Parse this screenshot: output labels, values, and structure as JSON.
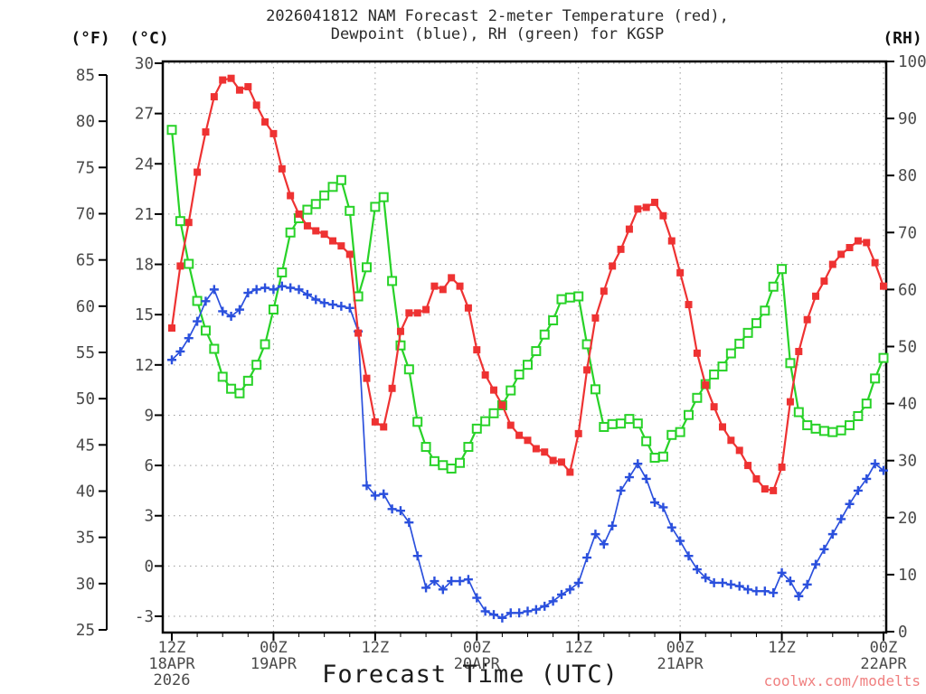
{
  "title": {
    "line1": "2026041812 NAM Forecast 2-meter Temperature (red),",
    "line2": "Dewpoint (blue), RH (green) for KGSP"
  },
  "watermark": {
    "text": "coolwx.com/modelts",
    "color": "#f08080"
  },
  "chart_data": {
    "type": "line",
    "title": "2026041812 NAM Forecast 2-meter Temperature (red), Dewpoint (blue), RH (green) for KGSP",
    "xlabel": "Forecast Time (UTC)",
    "x_hours_range": [
      0,
      84
    ],
    "x_hour_step": 1,
    "grid": "dotted, vertical every 12h, horizontal every 3 deg C",
    "x_ticks": [
      {
        "hour": 0,
        "label": "12Z",
        "date": "18APR",
        "year": "2026"
      },
      {
        "hour": 12,
        "label": "00Z",
        "date": "19APR",
        "year": ""
      },
      {
        "hour": 24,
        "label": "12Z",
        "date": "",
        "year": ""
      },
      {
        "hour": 36,
        "label": "00Z",
        "date": "20APR",
        "year": ""
      },
      {
        "hour": 48,
        "label": "12Z",
        "date": "",
        "year": ""
      },
      {
        "hour": 60,
        "label": "00Z",
        "date": "21APR",
        "year": ""
      },
      {
        "hour": 72,
        "label": "12Z",
        "date": "",
        "year": ""
      },
      {
        "hour": 84,
        "label": "00Z",
        "date": "22APR",
        "year": ""
      }
    ],
    "axes": {
      "fahrenheit": {
        "header": "(°F)",
        "ticks": [
          85,
          80,
          75,
          70,
          65,
          60,
          55,
          50,
          45,
          40,
          35,
          30,
          25
        ],
        "range": [
          85,
          25
        ]
      },
      "celsius": {
        "header": "(°C)",
        "ticks": [
          30,
          27,
          24,
          21,
          18,
          15,
          12,
          9,
          6,
          3,
          0,
          -3
        ],
        "range": [
          30,
          -3
        ]
      },
      "rh": {
        "header": "(RH)",
        "ticks": [
          100,
          90,
          80,
          70,
          60,
          50,
          40,
          30,
          20,
          10,
          0
        ],
        "range": [
          100,
          0
        ]
      }
    },
    "series": [
      {
        "name": "rh",
        "legend": "RH (green)",
        "axis": "rh",
        "color": "#28d228",
        "marker": "square-open",
        "values": [
          88,
          72,
          64.5,
          58,
          52.8,
          49.6,
          44.7,
          42.6,
          41.8,
          44,
          46.8,
          50.4,
          56.5,
          63,
          70,
          72.5,
          74,
          75,
          76.5,
          78,
          79.2,
          73.8,
          58.8,
          63.9,
          74.5,
          76.2,
          61.5,
          50.2,
          46,
          36.8,
          32.4,
          29.9,
          29.2,
          28.6,
          29.6,
          32.4,
          35.6,
          36.9,
          38.3,
          39.7,
          42.3,
          45.1,
          46.8,
          49.2,
          52.1,
          54.6,
          58.3,
          58.6,
          58.8,
          50.4,
          42.5,
          35.9,
          36.4,
          36.5,
          37.3,
          36.5,
          33.4,
          30.5,
          30.7,
          34.5,
          35,
          38,
          41,
          43.4,
          45.1,
          46.5,
          48.8,
          50.5,
          52.4,
          54.1,
          56.3,
          60.5,
          63.6,
          47.1,
          38.5,
          36.2,
          35.6,
          35.2,
          35,
          35.3,
          36.2,
          37.8,
          40,
          44.4,
          48
        ]
      },
      {
        "name": "dewpoint",
        "legend": "Dewpoint (blue)",
        "axis": "celsius",
        "color": "#2b50dd",
        "marker": "plus",
        "values": [
          12.3,
          12.8,
          13.6,
          14.6,
          15.8,
          16.5,
          15.2,
          14.9,
          15.3,
          16.3,
          16.5,
          16.6,
          16.5,
          16.7,
          16.6,
          16.5,
          16.2,
          15.9,
          15.7,
          15.6,
          15.5,
          15.4,
          14,
          4.8,
          4.2,
          4.3,
          3.4,
          3.3,
          2.6,
          0.6,
          -1.3,
          -0.9,
          -1.4,
          -0.9,
          -0.9,
          -0.8,
          -1.9,
          -2.7,
          -2.9,
          -3.1,
          -2.8,
          -2.8,
          -2.7,
          -2.6,
          -2.4,
          -2.1,
          -1.7,
          -1.4,
          -1,
          0.5,
          1.9,
          1.3,
          2.4,
          4.5,
          5.3,
          6.1,
          5.2,
          3.8,
          3.5,
          2.3,
          1.5,
          0.6,
          -0.2,
          -0.7,
          -1,
          -1,
          -1.1,
          -1.2,
          -1.4,
          -1.5,
          -1.5,
          -1.6,
          -0.4,
          -0.9,
          -1.8,
          -1.1,
          0.1,
          1,
          1.9,
          2.8,
          3.7,
          4.5,
          5.2,
          6.1,
          5.7
        ]
      },
      {
        "name": "temperature",
        "legend": "2-meter Temperature (red)",
        "axis": "celsius",
        "color": "#ee3232",
        "marker": "square-filled",
        "values": [
          14.2,
          17.9,
          20.5,
          23.5,
          25.9,
          28,
          29,
          29.1,
          28.4,
          28.6,
          27.5,
          26.5,
          25.8,
          23.7,
          22.1,
          21,
          20.3,
          20,
          19.8,
          19.4,
          19.1,
          18.6,
          13.9,
          11.2,
          8.6,
          8.3,
          10.6,
          14,
          15.1,
          15.1,
          15.3,
          16.7,
          16.5,
          17.2,
          16.7,
          15.4,
          12.9,
          11.4,
          10.5,
          9.6,
          8.4,
          7.8,
          7.5,
          7,
          6.8,
          6.3,
          6.2,
          5.6,
          7.9,
          11.7,
          14.8,
          16.4,
          17.9,
          18.9,
          20.1,
          21.3,
          21.4,
          21.7,
          20.9,
          19.4,
          17.5,
          15.6,
          12.7,
          10.8,
          9.5,
          8.3,
          7.5,
          6.9,
          6,
          5.2,
          4.6,
          4.5,
          5.9,
          9.8,
          12.8,
          14.7,
          16.1,
          17,
          18,
          18.6,
          19,
          19.4,
          19.3,
          18.1,
          16.7
        ]
      }
    ]
  }
}
